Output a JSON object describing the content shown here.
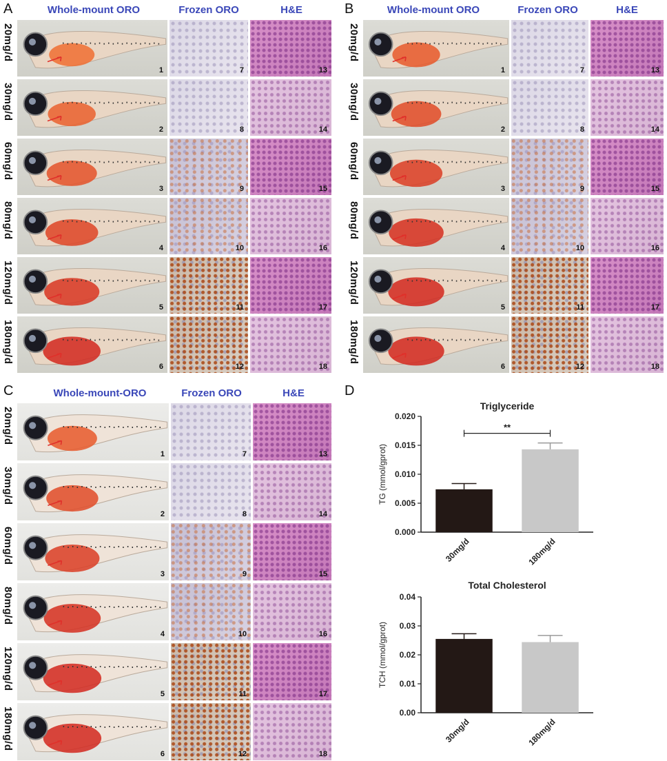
{
  "panels": {
    "A": {
      "letter": "A",
      "col_headers": [
        "Whole-mount ORO",
        "Frozen ORO",
        "H&E"
      ],
      "rows": [
        {
          "label": "20mg/d",
          "nums": [
            "1",
            "7",
            "13"
          ]
        },
        {
          "label": "30mg/d",
          "nums": [
            "2",
            "8",
            "14"
          ]
        },
        {
          "label": "60mg/d",
          "nums": [
            "3",
            "9",
            "15"
          ]
        },
        {
          "label": "80mg/d",
          "nums": [
            "4",
            "10",
            "16"
          ]
        },
        {
          "label": "120mg/d",
          "nums": [
            "5",
            "11",
            "17"
          ]
        },
        {
          "label": "180mg/d",
          "nums": [
            "6",
            "12",
            "18"
          ]
        }
      ]
    },
    "B": {
      "letter": "B",
      "col_headers": [
        "Whole-mount ORO",
        "Frozen ORO",
        "H&E"
      ],
      "rows": [
        {
          "label": "20mg/d",
          "nums": [
            "1",
            "7",
            "13"
          ]
        },
        {
          "label": "30mg/d",
          "nums": [
            "2",
            "8",
            "14"
          ]
        },
        {
          "label": "60mg/d",
          "nums": [
            "3",
            "9",
            "15"
          ]
        },
        {
          "label": "80mg/d",
          "nums": [
            "4",
            "10",
            "16"
          ]
        },
        {
          "label": "120mg/d",
          "nums": [
            "5",
            "11",
            "17"
          ]
        },
        {
          "label": "180mg/d",
          "nums": [
            "6",
            "12",
            "18"
          ]
        }
      ]
    },
    "C": {
      "letter": "C",
      "col_headers": [
        "Whole-mount-ORO",
        "Frozen ORO",
        "H&E"
      ],
      "rows": [
        {
          "label": "20mg/d",
          "nums": [
            "1",
            "7",
            "13"
          ]
        },
        {
          "label": "30mg/d",
          "nums": [
            "2",
            "8",
            "14"
          ]
        },
        {
          "label": "60mg/d",
          "nums": [
            "3",
            "9",
            "15"
          ]
        },
        {
          "label": "80mg/d",
          "nums": [
            "4",
            "10",
            "16"
          ]
        },
        {
          "label": "120mg/d",
          "nums": [
            "5",
            "11",
            "17"
          ]
        },
        {
          "label": "180mg/d",
          "nums": [
            "6",
            "12",
            "18"
          ]
        }
      ]
    },
    "D": {
      "letter": "D"
    }
  },
  "colors": {
    "header_blue": "#3a47b8",
    "bar_dark": "#231815",
    "bar_light": "#c8c8c8",
    "arrow_red": "#e0302a"
  },
  "chart_data": [
    {
      "type": "bar",
      "title": "Triglyceride",
      "ylabel": "TG (mmol/gprot)",
      "xlabel": "",
      "categories": [
        "30mg/d",
        "180mg/d"
      ],
      "values": [
        0.0074,
        0.0143
      ],
      "errors": [
        0.001,
        0.0011
      ],
      "ylim": [
        0,
        0.02
      ],
      "yticks": [
        "0.000",
        "0.005",
        "0.010",
        "0.015",
        "0.020"
      ],
      "annotation": "**",
      "colors": [
        "#231815",
        "#c8c8c8"
      ]
    },
    {
      "type": "bar",
      "title": "Total Cholesterol",
      "ylabel": "TCH (mmol/gprot)",
      "xlabel": "",
      "categories": [
        "30mg/d",
        "180mg/d"
      ],
      "values": [
        0.0255,
        0.0244
      ],
      "errors": [
        0.0018,
        0.0023
      ],
      "ylim": [
        0,
        0.04
      ],
      "yticks": [
        "0.00",
        "0.01",
        "0.02",
        "0.03",
        "0.04"
      ],
      "colors": [
        "#231815",
        "#c8c8c8"
      ]
    }
  ]
}
